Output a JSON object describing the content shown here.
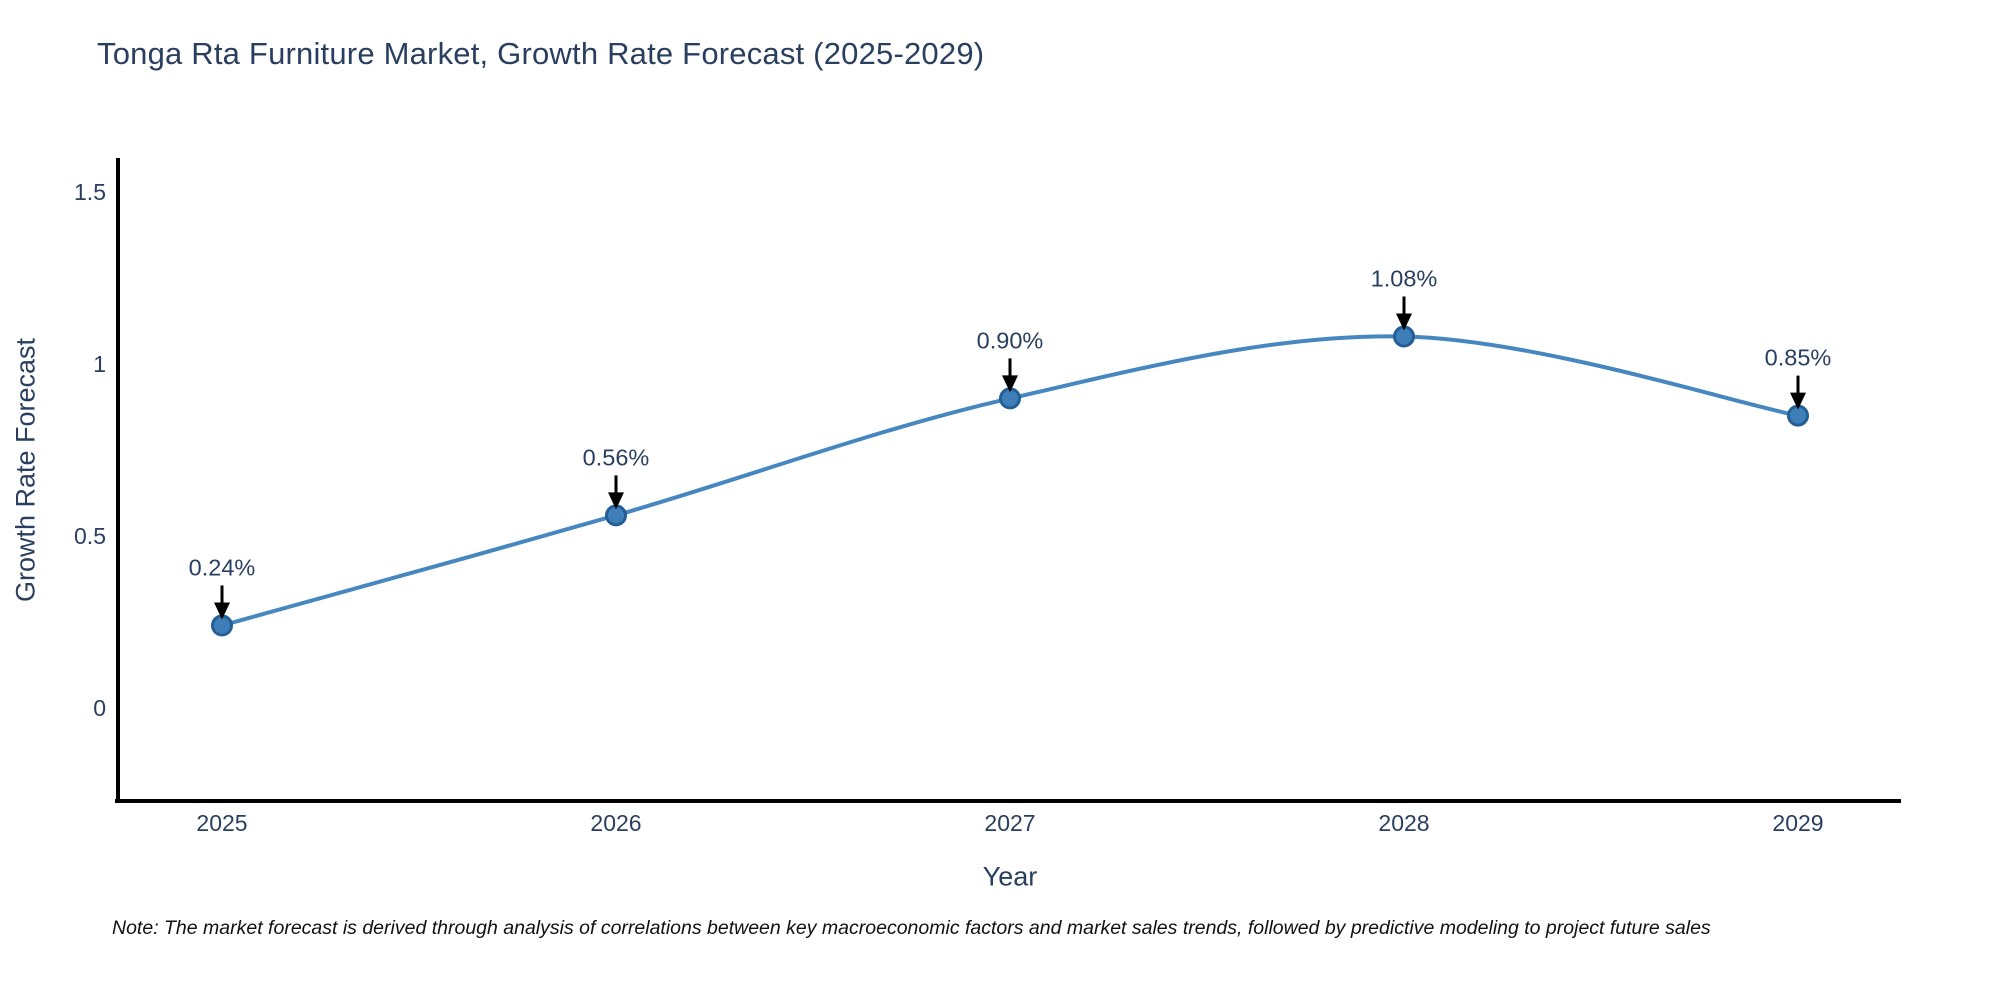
{
  "title": "Tonga Rta Furniture Market, Growth Rate Forecast (2025-2029)",
  "note": "Note: The market forecast is derived through analysis of correlations between key macroeconomic factors and market sales trends, followed by predictive modeling to project future sales",
  "colors": {
    "title_text": "#2a3f5f",
    "tick_text": "#2a3f5f",
    "axis_line": "#000000",
    "line": "#4687c0",
    "marker_fill": "#3f7fb9",
    "marker_edge": "#235f95",
    "arrow": "#000000",
    "note_text": "#111111"
  },
  "chart_data": {
    "type": "line",
    "title": "Tonga Rta Furniture Market, Growth Rate Forecast (2025-2029)",
    "xlabel": "Year",
    "ylabel": "Growth Rate Forecast",
    "x": [
      2025,
      2026,
      2027,
      2028,
      2029
    ],
    "values": [
      0.24,
      0.56,
      0.9,
      1.08,
      0.85
    ],
    "point_labels": [
      "0.24%",
      "0.56%",
      "0.90%",
      "1.08%",
      "0.85%"
    ],
    "xticks": [
      "2025",
      "2026",
      "2027",
      "2028",
      "2029"
    ],
    "yticks": [
      "0",
      "0.5",
      "1",
      "1.5"
    ],
    "ytick_values": [
      0,
      0.5,
      1,
      1.5
    ],
    "ylim": [
      -0.27,
      1.6
    ],
    "line_shape": "spline",
    "markers": true,
    "grid": false,
    "legend": "none",
    "annotations_arrow": "down-to-point"
  }
}
